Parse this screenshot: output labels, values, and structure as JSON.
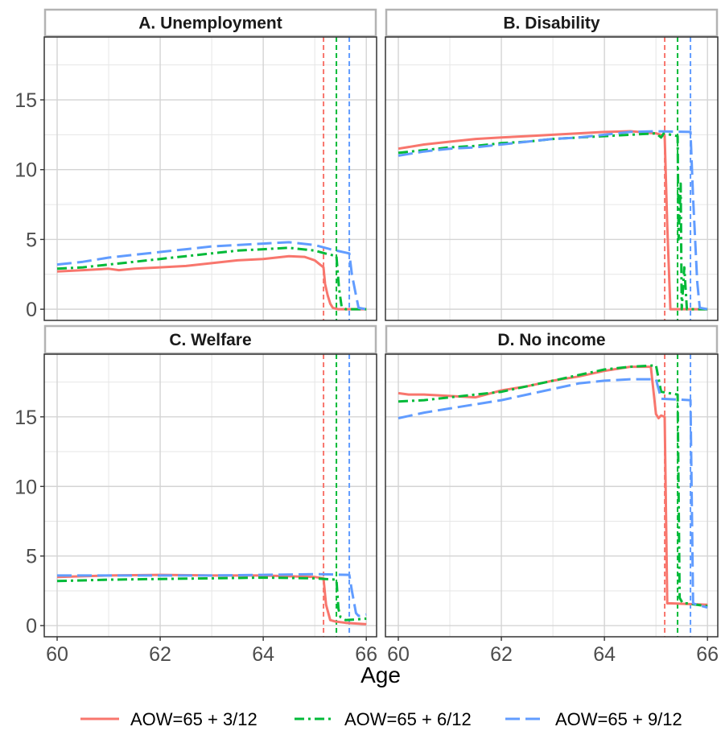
{
  "chart_data": {
    "type": "line",
    "xlabel": "Age",
    "ylabel": "",
    "xlim": [
      59.75,
      66.2
    ],
    "ylim": [
      -0.8,
      19.5
    ],
    "x_ticks": [
      60,
      62,
      64,
      66
    ],
    "y_ticks": [
      0,
      5,
      10,
      15
    ],
    "grid": true,
    "legend_position": "bottom",
    "vlines": [
      {
        "x": 65.17,
        "series": "AOW=65 + 3/12"
      },
      {
        "x": 65.42,
        "series": "AOW=65 + 6/12"
      },
      {
        "x": 65.67,
        "series": "AOW=65 + 9/12"
      }
    ],
    "series_styles": [
      {
        "name": "AOW=65 + 3/12",
        "color": "#F8766D",
        "dash": "solid"
      },
      {
        "name": "AOW=65 + 6/12",
        "color": "#00BA38",
        "dash": "dashdot"
      },
      {
        "name": "AOW=65 + 9/12",
        "color": "#619CFF",
        "dash": "longdash"
      }
    ],
    "panels": [
      {
        "title": "A. Unemployment",
        "series": [
          {
            "name": "AOW=65 + 3/12",
            "x": [
              60,
              60.5,
              61,
              61.2,
              61.5,
              62,
              62.5,
              63,
              63.5,
              64,
              64.5,
              64.8,
              65,
              65.1,
              65.17,
              65.2,
              65.25,
              65.3,
              65.35,
              65.45,
              65.6,
              66
            ],
            "y": [
              2.7,
              2.8,
              2.9,
              2.8,
              2.9,
              3.0,
              3.1,
              3.3,
              3.5,
              3.6,
              3.8,
              3.75,
              3.5,
              3.2,
              3.0,
              1.8,
              1.0,
              0.4,
              0.1,
              0.0,
              0.0,
              0.0
            ]
          },
          {
            "name": "AOW=65 + 6/12",
            "x": [
              60,
              60.5,
              61,
              61.5,
              62,
              62.5,
              63,
              63.5,
              64,
              64.5,
              65,
              65.2,
              65.42,
              65.47,
              65.52,
              65.6,
              66
            ],
            "y": [
              2.9,
              3.0,
              3.2,
              3.4,
              3.6,
              3.8,
              4.0,
              4.2,
              4.3,
              4.4,
              4.2,
              4.0,
              3.8,
              1.5,
              0.2,
              0.0,
              0.0
            ]
          },
          {
            "name": "AOW=65 + 9/12",
            "x": [
              60,
              60.5,
              61,
              61.5,
              62,
              62.5,
              63,
              63.5,
              64,
              64.5,
              65,
              65.3,
              65.67,
              65.72,
              65.8,
              65.85,
              66
            ],
            "y": [
              3.2,
              3.4,
              3.7,
              3.9,
              4.1,
              4.3,
              4.5,
              4.6,
              4.7,
              4.8,
              4.6,
              4.3,
              4.0,
              2.5,
              1.0,
              0.1,
              0.0
            ]
          }
        ]
      },
      {
        "title": "B. Disability",
        "series": [
          {
            "name": "AOW=65 + 3/12",
            "x": [
              60,
              60.5,
              61,
              61.5,
              62,
              62.5,
              63,
              63.5,
              64,
              64.5,
              65,
              65.17,
              65.22,
              65.28,
              65.4,
              66
            ],
            "y": [
              11.5,
              11.8,
              12.0,
              12.2,
              12.3,
              12.4,
              12.5,
              12.6,
              12.7,
              12.75,
              12.6,
              12.4,
              6.0,
              0.0,
              0.0,
              0.0
            ]
          },
          {
            "name": "AOW=65 + 6/12",
            "x": [
              60,
              60.5,
              61,
              61.5,
              62,
              62.5,
              63,
              63.5,
              64,
              64.5,
              65,
              65.1,
              65.15,
              65.42,
              65.44,
              65.48,
              65.5,
              65.55,
              65.6,
              66
            ],
            "y": [
              11.2,
              11.4,
              11.6,
              11.7,
              11.9,
              12.0,
              12.2,
              12.3,
              12.4,
              12.5,
              12.6,
              12.3,
              12.6,
              12.4,
              5.0,
              9.0,
              0.0,
              3.0,
              0.0,
              0.0
            ]
          },
          {
            "name": "AOW=65 + 9/12",
            "x": [
              60,
              60.5,
              61,
              61.5,
              62,
              62.5,
              63,
              63.5,
              64,
              64.5,
              65,
              65.67,
              65.72,
              65.8,
              65.85,
              66
            ],
            "y": [
              11.0,
              11.3,
              11.5,
              11.6,
              11.8,
              12.0,
              12.2,
              12.3,
              12.5,
              12.7,
              12.75,
              12.7,
              8.0,
              2.0,
              0.1,
              0.0
            ]
          }
        ]
      },
      {
        "title": "C. Welfare",
        "series": [
          {
            "name": "AOW=65 + 3/12",
            "x": [
              60,
              61,
              62,
              63,
              64,
              65,
              65.17,
              65.22,
              65.3,
              65.4,
              65.6,
              66
            ],
            "y": [
              3.5,
              3.6,
              3.65,
              3.6,
              3.6,
              3.5,
              3.4,
              1.5,
              0.4,
              0.3,
              0.2,
              0.1
            ]
          },
          {
            "name": "AOW=65 + 6/12",
            "x": [
              60,
              61,
              62,
              63,
              64,
              65,
              65.42,
              65.46,
              65.5,
              65.6,
              66
            ],
            "y": [
              3.2,
              3.3,
              3.35,
              3.4,
              3.45,
              3.4,
              3.3,
              1.2,
              0.6,
              0.4,
              0.5
            ]
          },
          {
            "name": "AOW=65 + 9/12",
            "x": [
              60,
              61,
              62,
              63,
              64,
              65,
              65.67,
              65.72,
              65.8,
              65.85,
              66
            ],
            "y": [
              3.6,
              3.6,
              3.6,
              3.6,
              3.65,
              3.7,
              3.65,
              2.5,
              0.9,
              0.7,
              0.8
            ]
          }
        ]
      },
      {
        "title": "D. No income",
        "series": [
          {
            "name": "AOW=65 + 3/12",
            "x": [
              60,
              60.2,
              60.5,
              61,
              61.5,
              62,
              62.5,
              63,
              63.5,
              64,
              64.5,
              64.9,
              65,
              65.05,
              65.1,
              65.17,
              65.22,
              65.3,
              66
            ],
            "y": [
              16.7,
              16.6,
              16.6,
              16.5,
              16.4,
              16.9,
              17.2,
              17.6,
              17.9,
              18.3,
              18.6,
              18.6,
              15.2,
              14.9,
              15.1,
              15.0,
              1.6,
              1.6,
              1.5
            ]
          },
          {
            "name": "AOW=65 + 6/12",
            "x": [
              60,
              60.5,
              61,
              61.5,
              62,
              62.5,
              63,
              63.5,
              64,
              64.5,
              65,
              65.1,
              65.42,
              65.46,
              65.52,
              65.6,
              66
            ],
            "y": [
              16.1,
              16.2,
              16.4,
              16.6,
              16.8,
              17.2,
              17.6,
              18.0,
              18.4,
              18.6,
              18.7,
              16.8,
              16.6,
              2.0,
              1.6,
              1.6,
              1.4
            ]
          },
          {
            "name": "AOW=65 + 9/12",
            "x": [
              60,
              60.5,
              61,
              61.5,
              62,
              62.5,
              63,
              63.5,
              64,
              64.5,
              65,
              65.1,
              65.67,
              65.72,
              65.8,
              66
            ],
            "y": [
              14.9,
              15.3,
              15.6,
              15.9,
              16.2,
              16.6,
              17.0,
              17.4,
              17.6,
              17.7,
              17.7,
              16.3,
              16.2,
              1.6,
              1.5,
              1.3
            ]
          }
        ]
      }
    ]
  }
}
